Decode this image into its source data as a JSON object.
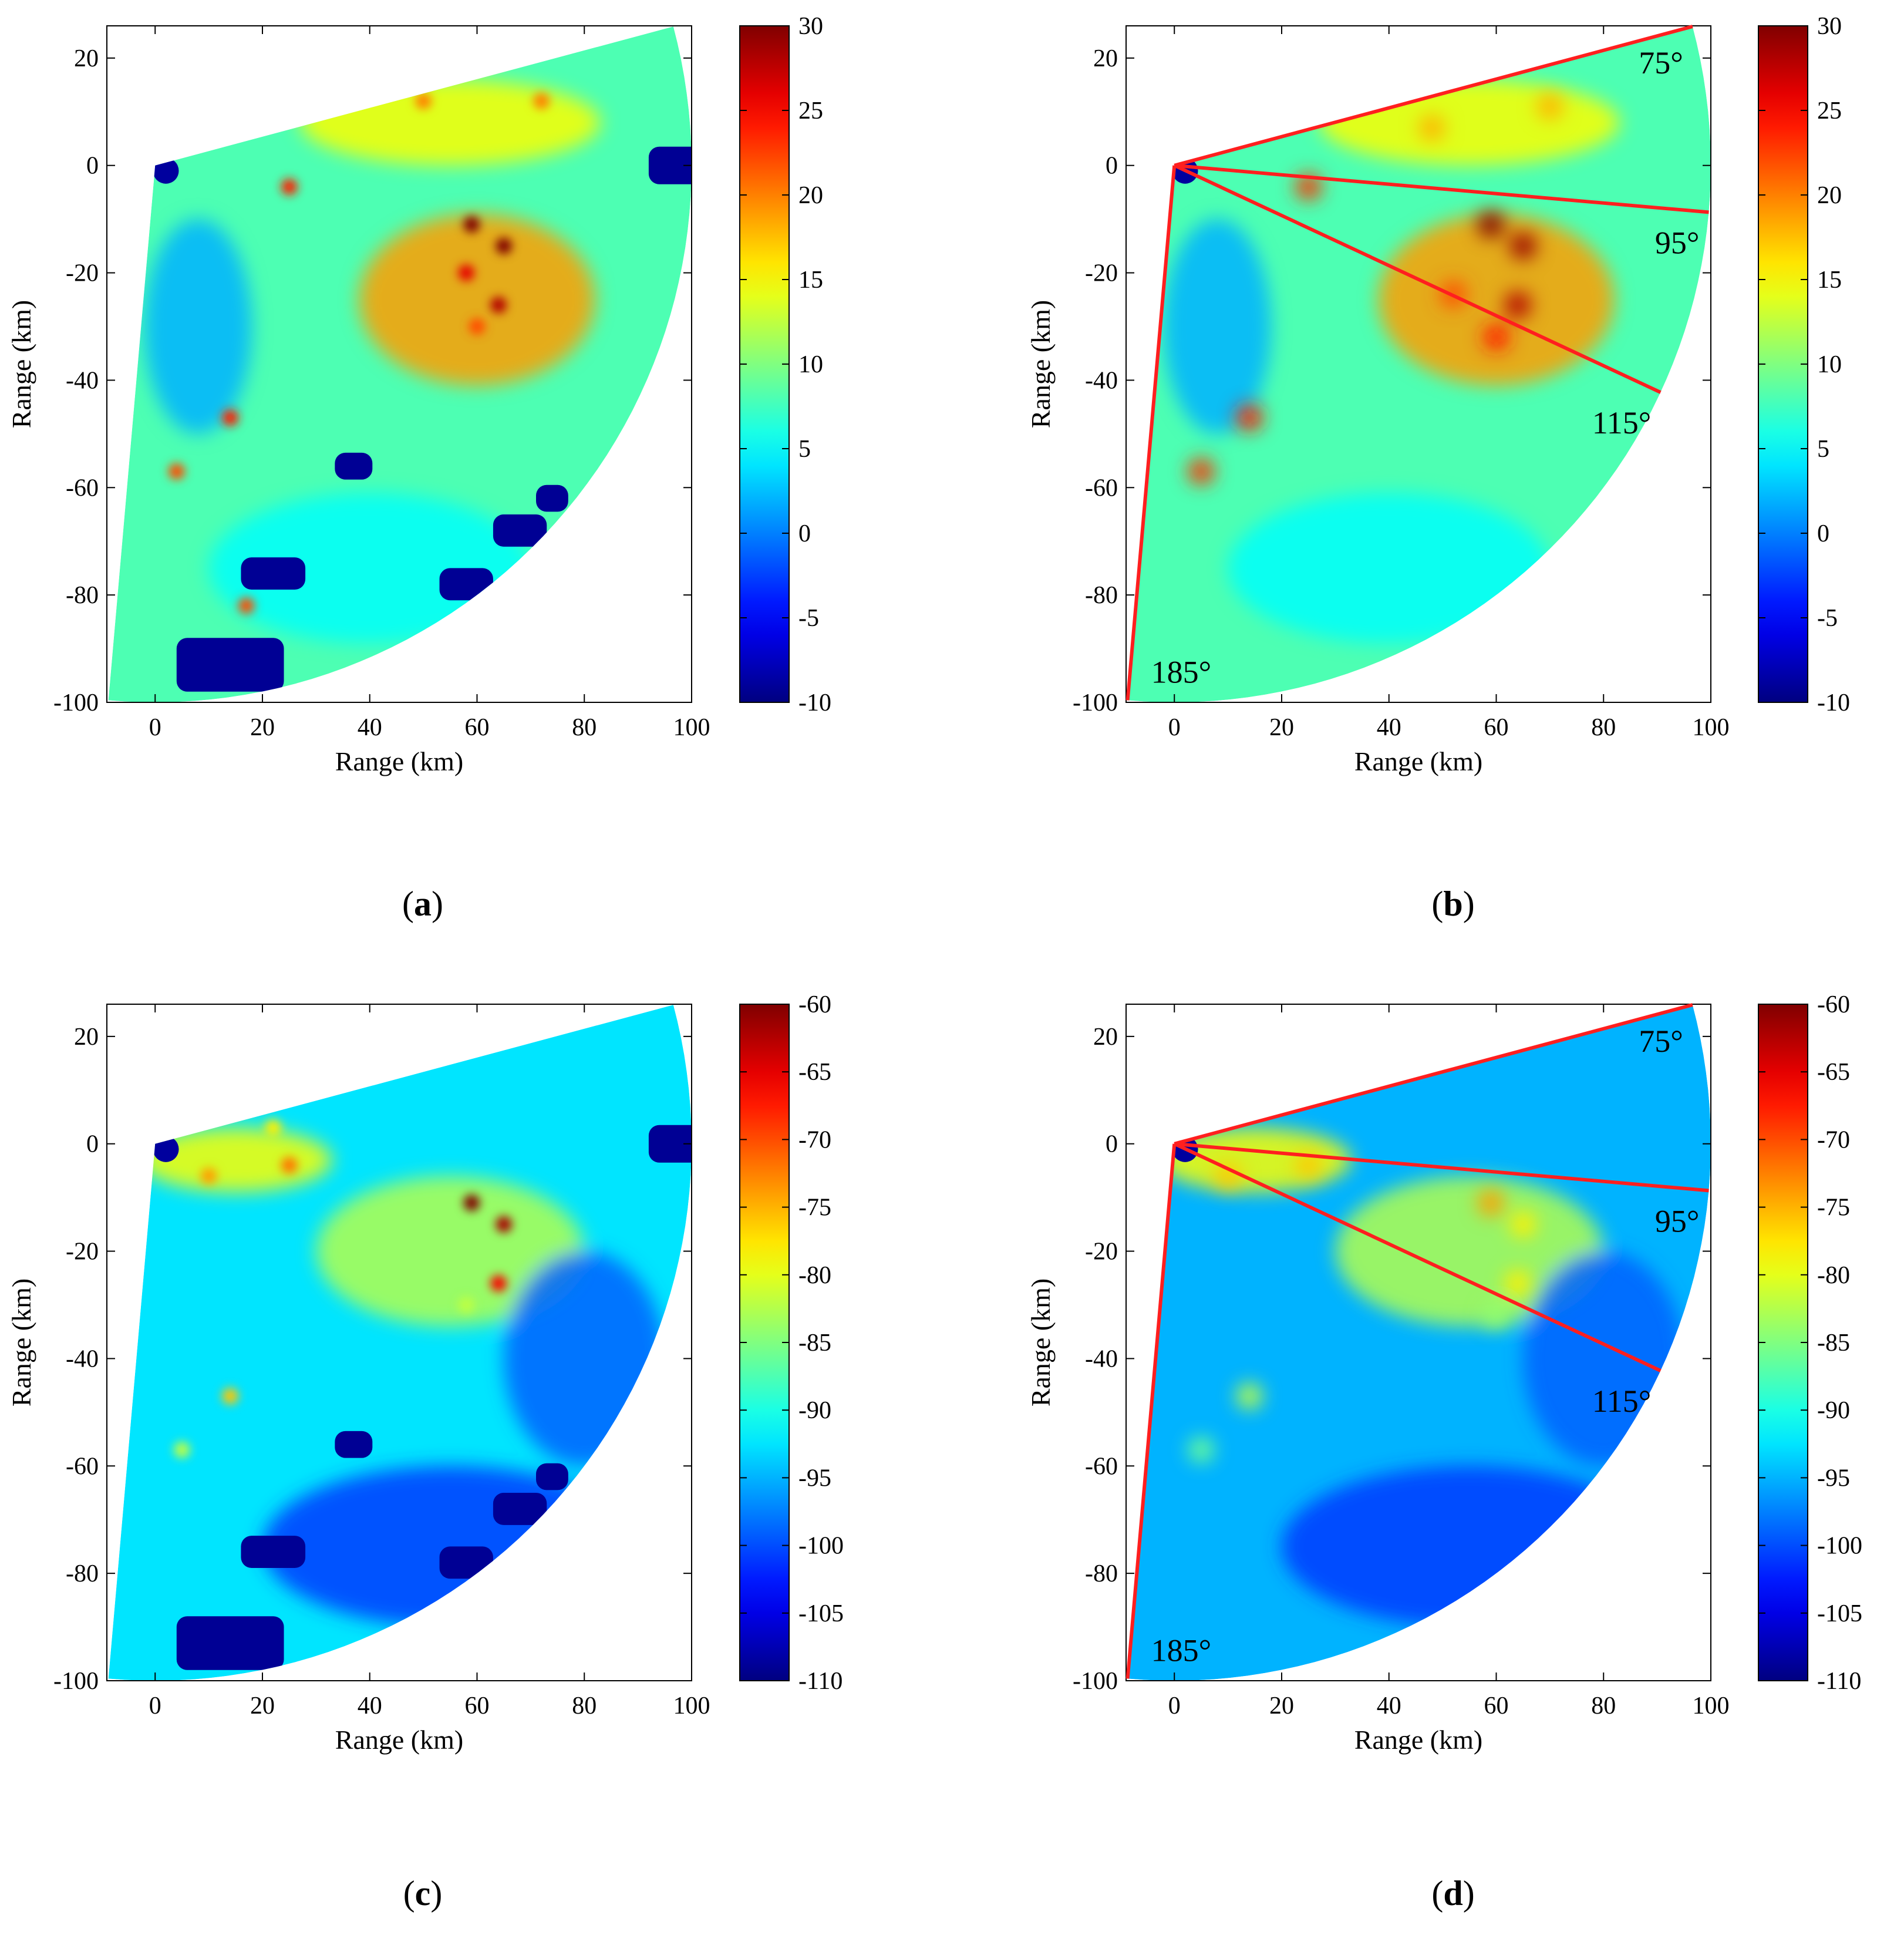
{
  "figure": {
    "captions": [
      "a",
      "b",
      "c",
      "d"
    ]
  },
  "chart_data": [
    {
      "panel": "a",
      "type": "heatmap",
      "title": "",
      "xlabel": "Range (km)",
      "ylabel": "Range (km)",
      "xlim": [
        -9,
        100
      ],
      "ylim": [
        -100,
        26
      ],
      "xticks": [
        0,
        20,
        40,
        60,
        80,
        100
      ],
      "yticks": [
        20,
        0,
        -20,
        -40,
        -60,
        -80,
        -100
      ],
      "colormap": "jet",
      "colorbar": {
        "min": -10,
        "max": 30,
        "ticks": [
          30,
          25,
          20,
          15,
          10,
          5,
          0,
          -5,
          -10
        ]
      },
      "sector": {
        "origin": [
          0,
          0
        ],
        "radius_km": 100,
        "bearing_start_deg": 75,
        "bearing_end_deg": 185
      },
      "field": "raw",
      "hot_spots": [
        {
          "x": 59,
          "y": -11,
          "value": 30
        },
        {
          "x": 65,
          "y": -15,
          "value": 30
        },
        {
          "x": 64,
          "y": -26,
          "value": 28
        },
        {
          "x": 58,
          "y": -20,
          "value": 26
        },
        {
          "x": 60,
          "y": -30,
          "value": 22
        },
        {
          "x": 25,
          "y": -4,
          "value": 24
        },
        {
          "x": 50,
          "y": 12,
          "value": 20
        },
        {
          "x": 72,
          "y": 12,
          "value": 20
        },
        {
          "x": 4,
          "y": -57,
          "value": 22
        },
        {
          "x": 14,
          "y": -47,
          "value": 24
        },
        {
          "x": 17,
          "y": -82,
          "value": 22
        }
      ],
      "masked_regions_note": "dark blue (-10) patches",
      "masked_regions": [
        {
          "x": 97,
          "y": 0,
          "w": 10,
          "h": 7
        },
        {
          "x": 14,
          "y": -93,
          "w": 20,
          "h": 10
        },
        {
          "x": 22,
          "y": -76,
          "w": 12,
          "h": 6
        },
        {
          "x": 68,
          "y": -68,
          "w": 10,
          "h": 6
        },
        {
          "x": 58,
          "y": -78,
          "w": 10,
          "h": 6
        },
        {
          "x": 37,
          "y": -56,
          "w": 7,
          "h": 5
        },
        {
          "x": 74,
          "y": -62,
          "w": 6,
          "h": 5
        }
      ],
      "annotations": []
    },
    {
      "panel": "b",
      "type": "heatmap",
      "title": "",
      "xlabel": "Range (km)",
      "ylabel": "Range (km)",
      "xlim": [
        -9,
        100
      ],
      "ylim": [
        -100,
        26
      ],
      "xticks": [
        0,
        20,
        40,
        60,
        80,
        100
      ],
      "yticks": [
        20,
        0,
        -20,
        -40,
        -60,
        -80,
        -100
      ],
      "colormap": "jet",
      "colorbar": {
        "min": -10,
        "max": 30,
        "ticks": [
          30,
          25,
          20,
          15,
          10,
          5,
          0,
          -5,
          -10
        ]
      },
      "sector": {
        "origin": [
          0,
          0
        ],
        "radius_km": 100,
        "bearing_start_deg": 75,
        "bearing_end_deg": 185
      },
      "field": "smoothed",
      "hot_spots": [
        {
          "x": 59,
          "y": -11,
          "value": 30
        },
        {
          "x": 65,
          "y": -15,
          "value": 29
        },
        {
          "x": 64,
          "y": -26,
          "value": 28
        },
        {
          "x": 60,
          "y": -32,
          "value": 24
        },
        {
          "x": 52,
          "y": -24,
          "value": 22
        },
        {
          "x": 25,
          "y": -4,
          "value": 23
        },
        {
          "x": 48,
          "y": 7,
          "value": 18
        },
        {
          "x": 70,
          "y": 11,
          "value": 18
        },
        {
          "x": 5,
          "y": -57,
          "value": 23
        },
        {
          "x": 14,
          "y": -47,
          "value": 24
        }
      ],
      "annotations": [
        {
          "text": "75°",
          "bearing_deg": 75
        },
        {
          "text": "95°",
          "bearing_deg": 95
        },
        {
          "text": "115°",
          "bearing_deg": 115
        },
        {
          "text": "185°",
          "bearing_deg": 185
        }
      ]
    },
    {
      "panel": "c",
      "type": "heatmap",
      "title": "",
      "xlabel": "Range (km)",
      "ylabel": "Range (km)",
      "xlim": [
        -9,
        100
      ],
      "ylim": [
        -100,
        26
      ],
      "xticks": [
        0,
        20,
        40,
        60,
        80,
        100
      ],
      "yticks": [
        20,
        0,
        -20,
        -40,
        -60,
        -80,
        -100
      ],
      "colormap": "jet",
      "colorbar": {
        "min": -110,
        "max": -60,
        "ticks": [
          -60,
          -65,
          -70,
          -75,
          -80,
          -85,
          -90,
          -95,
          -100,
          -105,
          -110
        ]
      },
      "sector": {
        "origin": [
          0,
          0
        ],
        "radius_km": 100,
        "bearing_start_deg": 75,
        "bearing_end_deg": 185
      },
      "field": "raw",
      "hot_spots": [
        {
          "x": 59,
          "y": -11,
          "value": -60
        },
        {
          "x": 65,
          "y": -15,
          "value": -62
        },
        {
          "x": 64,
          "y": -26,
          "value": -66
        },
        {
          "x": 10,
          "y": -6,
          "value": -74
        },
        {
          "x": 25,
          "y": -4,
          "value": -72
        },
        {
          "x": 22,
          "y": 3,
          "value": -78
        },
        {
          "x": 14,
          "y": -47,
          "value": -76
        },
        {
          "x": 5,
          "y": -57,
          "value": -82
        },
        {
          "x": 58,
          "y": -30,
          "value": -82
        }
      ],
      "masked_regions_note": "dark blue (-110) patches",
      "masked_regions": [
        {
          "x": 97,
          "y": 0,
          "w": 10,
          "h": 7
        },
        {
          "x": 14,
          "y": -93,
          "w": 20,
          "h": 10
        },
        {
          "x": 22,
          "y": -76,
          "w": 12,
          "h": 6
        },
        {
          "x": 68,
          "y": -68,
          "w": 10,
          "h": 6
        },
        {
          "x": 58,
          "y": -78,
          "w": 10,
          "h": 6
        },
        {
          "x": 37,
          "y": -56,
          "w": 7,
          "h": 5
        },
        {
          "x": 74,
          "y": -62,
          "w": 6,
          "h": 5
        }
      ],
      "annotations": []
    },
    {
      "panel": "d",
      "type": "heatmap",
      "title": "",
      "xlabel": "Range (km)",
      "ylabel": "Range (km)",
      "xlim": [
        -9,
        100
      ],
      "ylim": [
        -100,
        26
      ],
      "xticks": [
        0,
        20,
        40,
        60,
        80,
        100
      ],
      "yticks": [
        20,
        0,
        -20,
        -40,
        -60,
        -80,
        -100
      ],
      "colormap": "jet",
      "colorbar": {
        "min": -110,
        "max": -60,
        "ticks": [
          -60,
          -65,
          -70,
          -75,
          -80,
          -85,
          -90,
          -95,
          -100,
          -105,
          -110
        ]
      },
      "sector": {
        "origin": [
          0,
          0
        ],
        "radius_km": 100,
        "bearing_start_deg": 75,
        "bearing_end_deg": 185
      },
      "field": "smoothed",
      "hot_spots": [
        {
          "x": 59,
          "y": -11,
          "value": -74
        },
        {
          "x": 65,
          "y": -15,
          "value": -78
        },
        {
          "x": 64,
          "y": -26,
          "value": -78
        },
        {
          "x": 10,
          "y": -6,
          "value": -76
        },
        {
          "x": 25,
          "y": -4,
          "value": -76
        },
        {
          "x": 14,
          "y": -47,
          "value": -82
        },
        {
          "x": 5,
          "y": -57,
          "value": -86
        },
        {
          "x": 60,
          "y": -32,
          "value": -84
        }
      ],
      "annotations": [
        {
          "text": "75°",
          "bearing_deg": 75
        },
        {
          "text": "95°",
          "bearing_deg": 95
        },
        {
          "text": "115°",
          "bearing_deg": 115
        },
        {
          "text": "185°",
          "bearing_deg": 185
        }
      ]
    }
  ]
}
